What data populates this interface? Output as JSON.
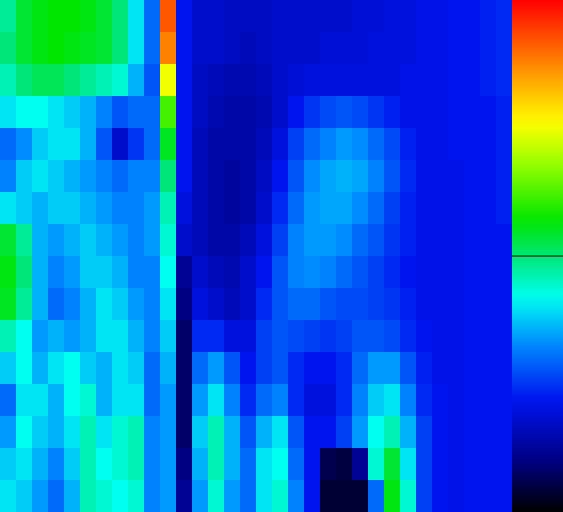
{
  "chart_data": {
    "type": "heatmap",
    "tick_labels": false,
    "cells": [
      [
        48,
        54,
        56,
        57,
        57,
        56,
        54,
        50,
        40,
        30,
        92,
        22,
        18,
        18,
        17,
        17,
        17,
        18,
        18,
        18,
        18,
        18,
        19,
        19,
        20,
        20,
        21,
        21,
        22,
        22,
        23,
        24
      ],
      [
        50,
        54,
        56,
        57,
        56,
        55,
        54,
        50,
        40,
        30,
        88,
        22,
        18,
        18,
        17,
        16,
        17,
        18,
        18,
        18,
        19,
        19,
        19,
        20,
        20,
        20,
        21,
        21,
        22,
        22,
        23,
        24
      ],
      [
        46,
        50,
        52,
        52,
        50,
        48,
        46,
        44,
        36,
        28,
        75,
        22,
        17,
        16,
        15,
        15,
        16,
        18,
        19,
        20,
        20,
        20,
        20,
        20,
        20,
        21,
        21,
        21,
        22,
        22,
        23,
        24
      ],
      [
        40,
        42,
        42,
        40,
        38,
        36,
        32,
        28,
        30,
        30,
        62,
        22,
        17,
        15,
        14,
        14,
        15,
        18,
        22,
        25,
        27,
        28,
        27,
        25,
        23,
        21,
        21,
        21,
        22,
        22,
        22,
        23
      ],
      [
        30,
        33,
        38,
        40,
        40,
        36,
        28,
        18,
        25,
        30,
        55,
        22,
        16,
        14,
        14,
        14,
        16,
        20,
        26,
        30,
        32,
        34,
        33,
        30,
        27,
        23,
        21,
        21,
        22,
        22,
        22,
        23
      ],
      [
        32,
        38,
        40,
        38,
        36,
        34,
        32,
        30,
        32,
        32,
        50,
        22,
        16,
        14,
        13,
        14,
        17,
        22,
        28,
        33,
        35,
        36,
        35,
        32,
        28,
        24,
        21,
        21,
        21,
        22,
        22,
        23
      ],
      [
        40,
        38,
        36,
        38,
        38,
        36,
        34,
        32,
        32,
        34,
        46,
        20,
        16,
        14,
        13,
        14,
        18,
        24,
        30,
        34,
        35,
        35,
        33,
        30,
        26,
        23,
        21,
        21,
        21,
        22,
        22,
        23
      ],
      [
        54,
        48,
        36,
        34,
        36,
        38,
        36,
        34,
        32,
        34,
        44,
        18,
        16,
        14,
        14,
        16,
        20,
        26,
        32,
        34,
        34,
        33,
        30,
        28,
        25,
        23,
        21,
        21,
        21,
        22,
        22,
        22
      ],
      [
        56,
        50,
        36,
        32,
        34,
        38,
        38,
        36,
        32,
        32,
        42,
        12,
        18,
        16,
        15,
        18,
        22,
        28,
        32,
        33,
        32,
        30,
        28,
        26,
        24,
        22,
        21,
        21,
        21,
        22,
        22,
        22
      ],
      [
        55,
        48,
        36,
        30,
        32,
        36,
        40,
        38,
        34,
        32,
        40,
        10,
        20,
        18,
        16,
        18,
        24,
        28,
        30,
        30,
        28,
        27,
        27,
        26,
        25,
        23,
        21,
        21,
        21,
        22,
        22,
        22
      ],
      [
        46,
        42,
        34,
        36,
        34,
        36,
        40,
        40,
        36,
        32,
        38,
        8,
        24,
        24,
        20,
        20,
        26,
        28,
        27,
        26,
        25,
        26,
        28,
        28,
        27,
        24,
        22,
        21,
        21,
        22,
        22,
        22
      ],
      [
        38,
        42,
        36,
        40,
        42,
        38,
        36,
        40,
        38,
        30,
        36,
        8,
        30,
        34,
        28,
        22,
        26,
        28,
        24,
        22,
        22,
        24,
        30,
        34,
        34,
        28,
        23,
        21,
        21,
        22,
        22,
        22
      ],
      [
        30,
        40,
        40,
        36,
        42,
        44,
        36,
        40,
        40,
        30,
        34,
        8,
        34,
        40,
        32,
        24,
        30,
        32,
        24,
        20,
        20,
        24,
        32,
        38,
        40,
        32,
        24,
        22,
        21,
        22,
        22,
        22
      ],
      [
        34,
        42,
        38,
        36,
        40,
        46,
        40,
        44,
        46,
        32,
        34,
        8,
        38,
        46,
        36,
        28,
        36,
        40,
        28,
        22,
        22,
        26,
        34,
        42,
        46,
        36,
        26,
        22,
        21,
        22,
        22,
        22
      ],
      [
        38,
        40,
        36,
        32,
        38,
        46,
        42,
        44,
        46,
        32,
        34,
        10,
        36,
        46,
        36,
        30,
        40,
        42,
        30,
        22,
        6,
        5,
        12,
        44,
        54,
        40,
        26,
        22,
        21,
        22,
        22,
        22
      ],
      [
        40,
        38,
        34,
        30,
        36,
        46,
        44,
        42,
        44,
        32,
        34,
        12,
        34,
        44,
        34,
        30,
        40,
        44,
        32,
        22,
        4,
        4,
        4,
        30,
        56,
        44,
        26,
        22,
        21,
        22,
        22,
        22
      ]
    ],
    "colorbar": {
      "range": [
        0,
        100
      ],
      "line": 50
    }
  }
}
